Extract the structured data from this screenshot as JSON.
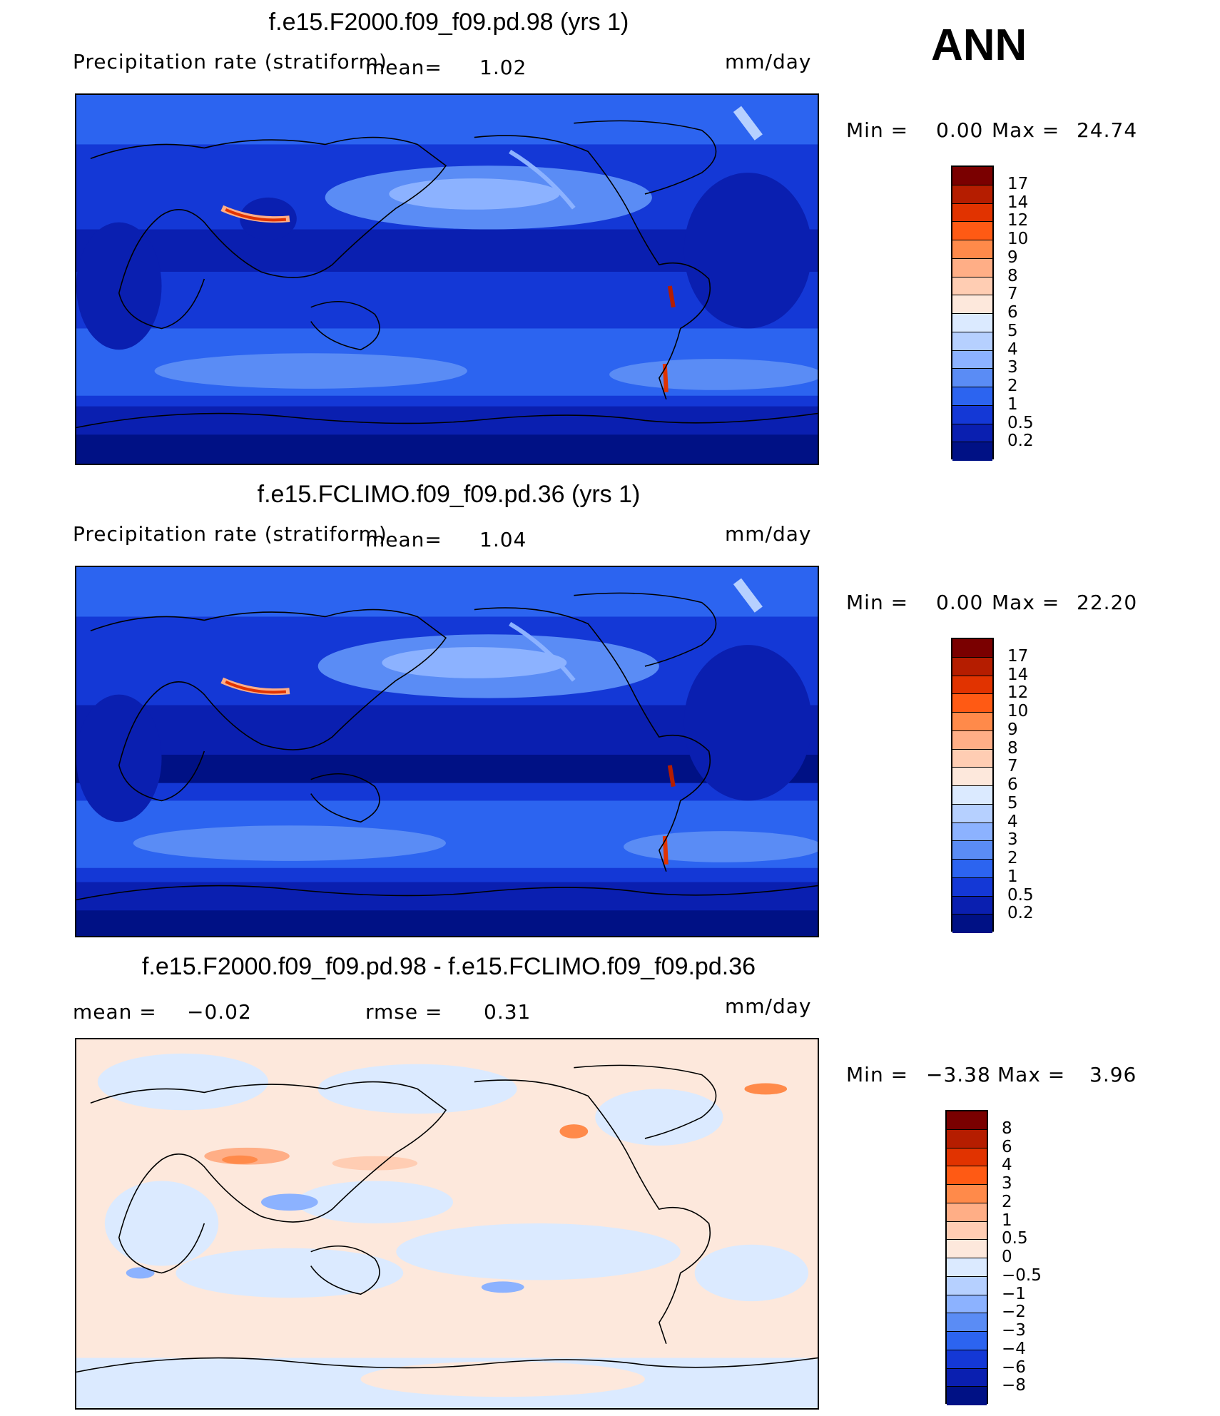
{
  "season": "ANN",
  "panels": [
    {
      "title": "f.e15.F2000.f09_f09.pd.98 (yrs 1)",
      "left_label": "Precipitation rate (stratiform)",
      "mean_label": "mean=",
      "mean_value": "1.02",
      "units": "mm/day",
      "minmax": {
        "min_label": "Min =",
        "min": "0.00",
        "max_label": "Max =",
        "max": "24.74"
      },
      "colorbar": {
        "labels": [
          "17",
          "14",
          "12",
          "10",
          "9",
          "8",
          "7",
          "6",
          "5",
          "4",
          "3",
          "2",
          "1",
          "0.5",
          "0.2"
        ],
        "colors": [
          "#7a0000",
          "#b51d00",
          "#e13300",
          "#ff5a14",
          "#ff8a4a",
          "#ffae86",
          "#ffcdb3",
          "#fde8dc",
          "#dbeaff",
          "#b6d0ff",
          "#8cb2ff",
          "#5a8cf5",
          "#2c64f0",
          "#1438d6",
          "#0a1fb0",
          "#001185"
        ]
      }
    },
    {
      "title": "f.e15.FCLIMO.f09_f09.pd.36 (yrs 1)",
      "left_label": "Precipitation rate (stratiform)",
      "mean_label": "mean=",
      "mean_value": "1.04",
      "units": "mm/day",
      "minmax": {
        "min_label": "Min =",
        "min": "0.00",
        "max_label": "Max =",
        "max": "22.20"
      },
      "colorbar": {
        "labels": [
          "17",
          "14",
          "12",
          "10",
          "9",
          "8",
          "7",
          "6",
          "5",
          "4",
          "3",
          "2",
          "1",
          "0.5",
          "0.2"
        ],
        "colors": [
          "#7a0000",
          "#b51d00",
          "#e13300",
          "#ff5a14",
          "#ff8a4a",
          "#ffae86",
          "#ffcdb3",
          "#fde8dc",
          "#dbeaff",
          "#b6d0ff",
          "#8cb2ff",
          "#5a8cf5",
          "#2c64f0",
          "#1438d6",
          "#0a1fb0",
          "#001185"
        ]
      }
    },
    {
      "title": "f.e15.F2000.f09_f09.pd.98 - f.e15.FCLIMO.f09_f09.pd.36",
      "mean_label": "mean =",
      "mean_value": "−0.02",
      "rmse_label": "rmse =",
      "rmse_value": "0.31",
      "units": "mm/day",
      "minmax": {
        "min_label": "Min =",
        "min": "−3.38",
        "max_label": "Max =",
        "max": "3.96"
      },
      "colorbar": {
        "labels": [
          "8",
          "6",
          "4",
          "3",
          "2",
          "1",
          "0.5",
          "0",
          "−0.5",
          "−1",
          "−2",
          "−3",
          "−4",
          "−6",
          "−8"
        ],
        "colors": [
          "#7a0000",
          "#b51d00",
          "#e13300",
          "#ff5a14",
          "#ff8a4a",
          "#ffae86",
          "#ffcdb3",
          "#fde8dc",
          "#dbeaff",
          "#b6d0ff",
          "#8cb2ff",
          "#5a8cf5",
          "#2c64f0",
          "#1438d6",
          "#0a1fb0",
          "#001185"
        ]
      }
    }
  ]
}
